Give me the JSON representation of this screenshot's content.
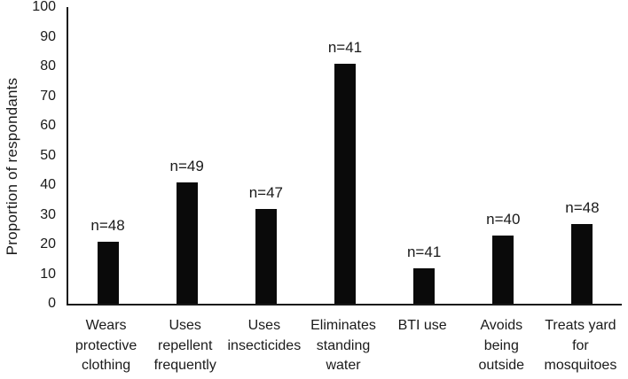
{
  "chart_data": {
    "type": "bar",
    "title": "",
    "xlabel": "",
    "ylabel": "Proportion of respondants",
    "ylim": [
      0,
      100
    ],
    "ytick_step": 10,
    "ytick_labels": [
      "0",
      "10",
      "20",
      "30",
      "40",
      "50",
      "60",
      "70",
      "80",
      "90",
      "100"
    ],
    "grid": false,
    "legend": "none",
    "bar_color": "#0a0a0a",
    "axis_color": "#1a1a1a",
    "text_color": "#1a1a1a",
    "categories": [
      "Wears protective clothing",
      "Uses repellent frequently",
      "Uses insecticides",
      "Eliminates standing water",
      "BTI use",
      "Avoids being outside",
      "Treats yard for mosquitoes"
    ],
    "category_lines": [
      [
        "Wears",
        "protective",
        "clothing"
      ],
      [
        "Uses",
        "repellent",
        "frequently"
      ],
      [
        "Uses",
        "insecticides"
      ],
      [
        "Eliminates",
        "standing",
        "water"
      ],
      [
        "BTI use"
      ],
      [
        "Avoids",
        "being",
        "outside"
      ],
      [
        "Treats yard",
        "for",
        "mosquitoes"
      ]
    ],
    "values": [
      21,
      41,
      32,
      81,
      12,
      23,
      27
    ],
    "bar_labels": [
      "n=48",
      "n=49",
      "n=47",
      "n=41",
      "n=41",
      "n=40",
      "n=48"
    ]
  }
}
